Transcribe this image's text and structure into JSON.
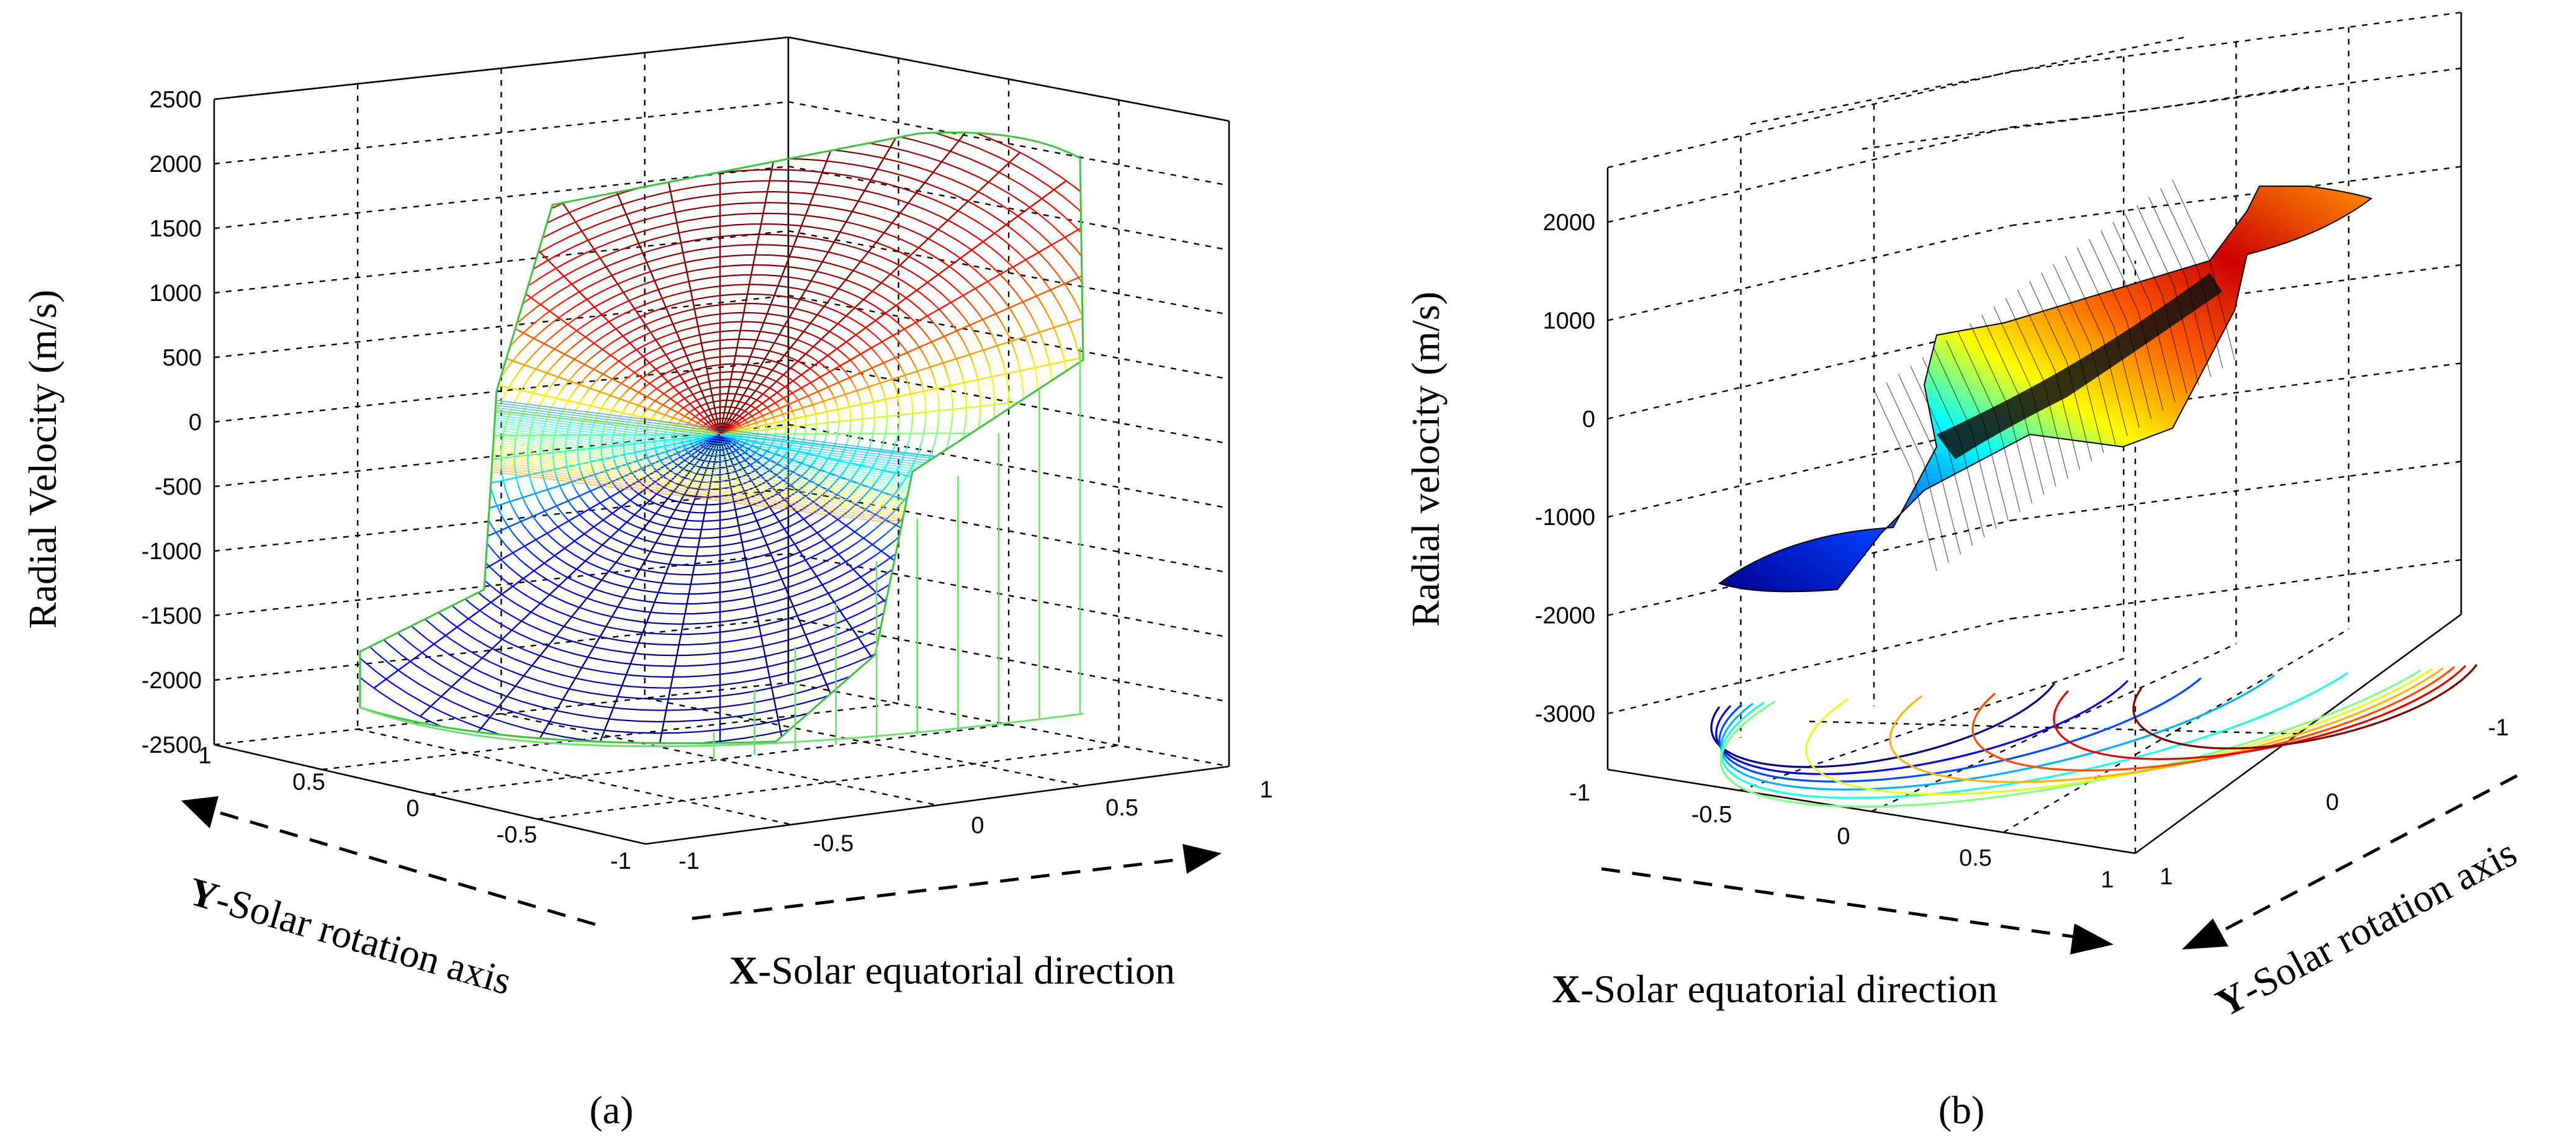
{
  "chart_data": [
    {
      "type": "surface3d-mesh",
      "panel": "a",
      "caption": "(a)",
      "zlabel": "Radial Velocity (m/s)",
      "xlabel_bold": "X",
      "xlabel_rest": "-Solar equatorial direction",
      "ylabel_bold": "Y",
      "ylabel_rest": "-Solar rotation axis",
      "z_ticks": [
        "2500",
        "2000",
        "1500",
        "1000",
        "500",
        "0",
        "-500",
        "-1000",
        "-1500",
        "-2000",
        "-2500"
      ],
      "x_ticks": [
        "-1",
        "-0.5",
        "0",
        "0.5",
        "1"
      ],
      "y_ticks": [
        "1",
        "0.5",
        "0",
        "-0.5",
        "-1"
      ],
      "zlim": [
        -2500,
        2500
      ],
      "xlim": [
        -1,
        1
      ],
      "ylim": [
        -1,
        1
      ],
      "colormap": "jet",
      "grid": true
    },
    {
      "type": "surface3d-with-contour",
      "panel": "b",
      "caption": "(b)",
      "zlabel": "Radial velocity (m/s)",
      "xlabel_bold": "X",
      "xlabel_rest": "-Solar equatorial direction",
      "ylabel_bold": "Y",
      "ylabel_rest": "-Solar rotation axis",
      "z_ticks": [
        "2000",
        "1000",
        "0",
        "-1000",
        "-2000",
        "-3000"
      ],
      "x_ticks": [
        "-1",
        "-0.5",
        "0",
        "0.5",
        "1"
      ],
      "y_ticks": [
        "-1",
        "0",
        "1"
      ],
      "zlim": [
        -3500,
        2500
      ],
      "xlim": [
        -1,
        1
      ],
      "ylim": [
        -1,
        1
      ],
      "colormap": "jet",
      "grid": true
    }
  ]
}
